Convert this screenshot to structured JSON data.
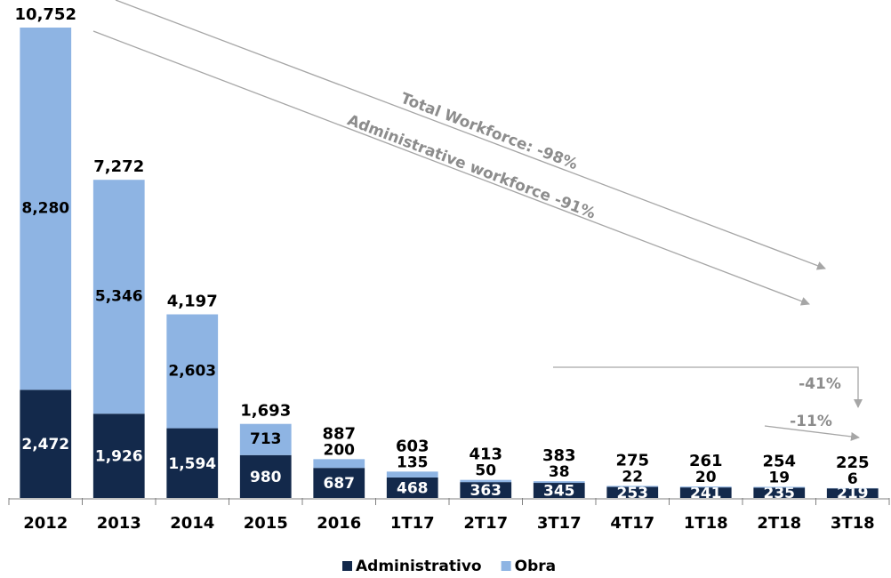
{
  "chart_data": {
    "type": "stacked_bar",
    "categories": [
      "2012",
      "2013",
      "2014",
      "2015",
      "2016",
      "1T17",
      "2T17",
      "3T17",
      "4T17",
      "1T18",
      "2T18",
      "3T18"
    ],
    "series": [
      {
        "name": "Administrativo",
        "color": "#13294b",
        "values": [
          2472,
          1926,
          1594,
          980,
          687,
          468,
          363,
          345,
          253,
          241,
          235,
          219
        ],
        "value_labels": [
          "2,472",
          "1,926",
          "1,594",
          "980",
          "687",
          "468",
          "363",
          "345",
          "253",
          "241",
          "235",
          "219"
        ]
      },
      {
        "name": "Obra",
        "color": "#8eb4e3",
        "values": [
          8280,
          5346,
          2603,
          713,
          200,
          135,
          50,
          38,
          22,
          20,
          19,
          6
        ],
        "value_labels": [
          "8,280",
          "5,346",
          "2,603",
          "713",
          "200",
          "135",
          "50",
          "38",
          "22",
          "20",
          "19",
          "6"
        ]
      }
    ],
    "totals": {
      "values": [
        10752,
        7272,
        4197,
        1693,
        887,
        603,
        413,
        383,
        275,
        261,
        254,
        225
      ],
      "value_labels": [
        "10,752",
        "7,272",
        "4,197",
        "1,693",
        "887",
        "603",
        "413",
        "383",
        "275",
        "261",
        "254",
        "225"
      ]
    },
    "annotations": [
      "Total Workforce: -98%",
      "Administrative workforce -91%",
      "-41%",
      "-11%"
    ],
    "legend": "bottom"
  }
}
